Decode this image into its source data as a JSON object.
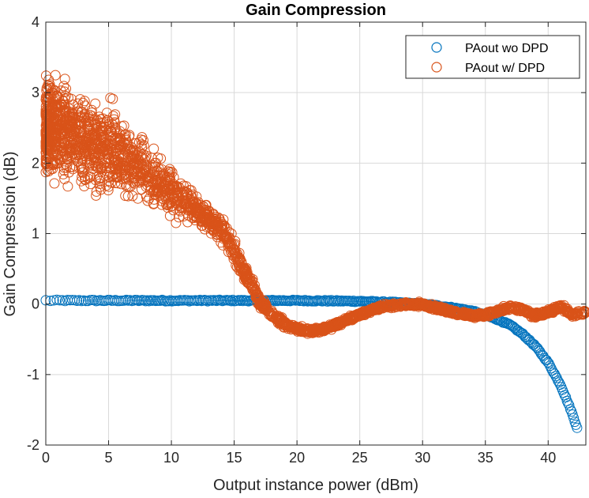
{
  "chart_data": {
    "type": "scatter",
    "title": "Gain Compression",
    "xlabel": "Output instance power (dBm)",
    "ylabel": "Gain Compression (dB)",
    "xlim": [
      0,
      43
    ],
    "ylim": [
      -2,
      4
    ],
    "xticks": [
      0,
      5,
      10,
      15,
      20,
      25,
      30,
      35,
      40
    ],
    "yticks": [
      -2,
      -1,
      0,
      1,
      2,
      3,
      4
    ],
    "grid": true,
    "legend_position": "top-right",
    "series": [
      {
        "name": "PAout wo DPD",
        "color": "#0072BD",
        "marker": "circle-open",
        "curve": [
          [
            0,
            0.05
          ],
          [
            5,
            0.05
          ],
          [
            10,
            0.05
          ],
          [
            15,
            0.05
          ],
          [
            20,
            0.05
          ],
          [
            25,
            0.04
          ],
          [
            28,
            0.02
          ],
          [
            30,
            0.0
          ],
          [
            32,
            -0.04
          ],
          [
            34,
            -0.1
          ],
          [
            36,
            -0.22
          ],
          [
            37,
            -0.3
          ],
          [
            38,
            -0.43
          ],
          [
            39,
            -0.6
          ],
          [
            40,
            -0.83
          ],
          [
            41,
            -1.15
          ],
          [
            41.8,
            -1.5
          ],
          [
            42.3,
            -1.75
          ]
        ]
      },
      {
        "name": "PAout w/ DPD",
        "color": "#D95319",
        "marker": "circle-open",
        "curve": [
          [
            0,
            2.5
          ],
          [
            2,
            2.4
          ],
          [
            4,
            2.25
          ],
          [
            6,
            2.1
          ],
          [
            8,
            1.85
          ],
          [
            10,
            1.6
          ],
          [
            12,
            1.35
          ],
          [
            14,
            1.05
          ],
          [
            15,
            0.75
          ],
          [
            16,
            0.4
          ],
          [
            17,
            0.05
          ],
          [
            18,
            -0.15
          ],
          [
            19,
            -0.28
          ],
          [
            20,
            -0.35
          ],
          [
            21,
            -0.38
          ],
          [
            22,
            -0.36
          ],
          [
            23,
            -0.3
          ],
          [
            24,
            -0.22
          ],
          [
            25,
            -0.15
          ],
          [
            26,
            -0.08
          ],
          [
            27,
            -0.03
          ],
          [
            28,
            -0.01
          ],
          [
            29,
            0.0
          ],
          [
            30,
            -0.01
          ],
          [
            31,
            -0.05
          ],
          [
            32,
            -0.1
          ],
          [
            33,
            -0.14
          ],
          [
            34,
            -0.16
          ],
          [
            35,
            -0.15
          ],
          [
            36,
            -0.1
          ],
          [
            37,
            -0.05
          ],
          [
            38,
            -0.08
          ],
          [
            39,
            -0.16
          ],
          [
            40,
            -0.12
          ],
          [
            41,
            -0.04
          ],
          [
            42,
            -0.15
          ],
          [
            43,
            -0.12
          ]
        ],
        "spread": [
          [
            0,
            0.7
          ],
          [
            2,
            0.65
          ],
          [
            5,
            0.6
          ],
          [
            8,
            0.45
          ],
          [
            10,
            0.3
          ],
          [
            12,
            0.2
          ],
          [
            14,
            0.18
          ],
          [
            16,
            0.12
          ],
          [
            18,
            0.06
          ],
          [
            20,
            0.04
          ],
          [
            30,
            0.03
          ],
          [
            43,
            0.04
          ]
        ]
      }
    ]
  }
}
